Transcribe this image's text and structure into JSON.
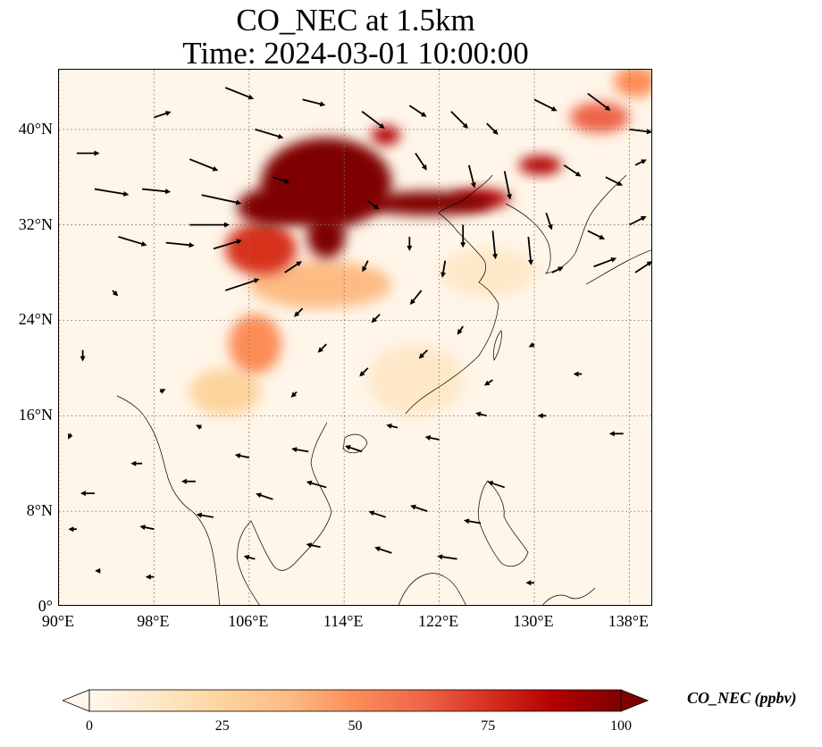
{
  "title": {
    "line1": "CO_NEC at 1.5km",
    "line2": "Time: 2024-03-01 10:00:00"
  },
  "map": {
    "region": {
      "lon_min": 90,
      "lon_max": 140,
      "lat_min": 0,
      "lat_max": 45
    },
    "gridlines": "dotted grey",
    "lat_ticks": [
      {
        "value": 0,
        "label": "0°"
      },
      {
        "value": 8,
        "label": "8°N"
      },
      {
        "value": 16,
        "label": "16°N"
      },
      {
        "value": 24,
        "label": "24°N"
      },
      {
        "value": 32,
        "label": "32°N"
      },
      {
        "value": 40,
        "label": "40°N"
      }
    ],
    "lon_ticks": [
      {
        "value": 90,
        "label": "90°E"
      },
      {
        "value": 98,
        "label": "98°E"
      },
      {
        "value": 106,
        "label": "106°E"
      },
      {
        "value": 114,
        "label": "114°E"
      },
      {
        "value": 122,
        "label": "122°E"
      },
      {
        "value": 130,
        "label": "130°E"
      },
      {
        "value": 138,
        "label": "138°E"
      }
    ],
    "plumes": [
      {
        "lon": 112.5,
        "lat": 35.5,
        "r_lon": 5.5,
        "r_lat": 3.8,
        "value": 100
      },
      {
        "lon": 108.0,
        "lat": 33.5,
        "r_lon": 3.0,
        "r_lat": 1.6,
        "value": 100
      },
      {
        "lon": 112.5,
        "lat": 31.0,
        "r_lon": 1.6,
        "r_lat": 1.8,
        "value": 100
      },
      {
        "lon": 121.0,
        "lat": 33.8,
        "r_lon": 5.5,
        "r_lat": 1.0,
        "value": 98
      },
      {
        "lon": 125.5,
        "lat": 34.2,
        "r_lon": 2.5,
        "r_lat": 0.8,
        "value": 90
      },
      {
        "lon": 107.0,
        "lat": 30.0,
        "r_lon": 3.0,
        "r_lat": 2.2,
        "value": 72
      },
      {
        "lon": 112.0,
        "lat": 27.0,
        "r_lon": 6.0,
        "r_lat": 2.0,
        "value": 40
      },
      {
        "lon": 106.5,
        "lat": 22.0,
        "r_lon": 2.2,
        "r_lat": 2.5,
        "value": 55
      },
      {
        "lon": 104.0,
        "lat": 18.0,
        "r_lon": 3.0,
        "r_lat": 2.0,
        "value": 30
      },
      {
        "lon": 130.5,
        "lat": 37.0,
        "r_lon": 1.8,
        "r_lat": 0.8,
        "value": 82
      },
      {
        "lon": 135.5,
        "lat": 41.0,
        "r_lon": 2.5,
        "r_lat": 1.3,
        "value": 60
      },
      {
        "lon": 138.5,
        "lat": 44.0,
        "r_lon": 1.8,
        "r_lat": 1.3,
        "value": 55
      },
      {
        "lon": 117.5,
        "lat": 39.5,
        "r_lon": 1.2,
        "r_lat": 0.8,
        "value": 90
      },
      {
        "lon": 126.0,
        "lat": 28.0,
        "r_lon": 4.0,
        "r_lat": 2.0,
        "value": 18
      },
      {
        "lon": 120.0,
        "lat": 19.0,
        "r_lon": 4.0,
        "r_lat": 3.0,
        "value": 10
      }
    ],
    "wind_vectors": [
      {
        "lon": 91.5,
        "lat": 38.0,
        "u": 8,
        "v": 0
      },
      {
        "lon": 93.0,
        "lat": 35.0,
        "u": 12,
        "v": -2
      },
      {
        "lon": 97.0,
        "lat": 35.0,
        "u": 10,
        "v": -1
      },
      {
        "lon": 101.0,
        "lat": 37.5,
        "u": 10,
        "v": -4
      },
      {
        "lon": 102.0,
        "lat": 34.5,
        "u": 14,
        "v": -3
      },
      {
        "lon": 101.0,
        "lat": 32.0,
        "u": 14,
        "v": 0
      },
      {
        "lon": 95.0,
        "lat": 31.0,
        "u": 10,
        "v": -3
      },
      {
        "lon": 99.0,
        "lat": 30.5,
        "u": 10,
        "v": -1
      },
      {
        "lon": 103.0,
        "lat": 30.0,
        "u": 10,
        "v": 3
      },
      {
        "lon": 104.0,
        "lat": 26.5,
        "u": 12,
        "v": 4
      },
      {
        "lon": 109.0,
        "lat": 28.0,
        "u": 6,
        "v": 4
      },
      {
        "lon": 98.0,
        "lat": 41.0,
        "u": 6,
        "v": 2
      },
      {
        "lon": 104.0,
        "lat": 43.5,
        "u": 10,
        "v": -4
      },
      {
        "lon": 106.5,
        "lat": 40.0,
        "u": 10,
        "v": -3
      },
      {
        "lon": 110.5,
        "lat": 42.5,
        "u": 8,
        "v": -2
      },
      {
        "lon": 115.5,
        "lat": 41.5,
        "u": 8,
        "v": -6
      },
      {
        "lon": 119.5,
        "lat": 42.0,
        "u": 6,
        "v": -4
      },
      {
        "lon": 123.0,
        "lat": 41.5,
        "u": 6,
        "v": -6
      },
      {
        "lon": 126.0,
        "lat": 40.5,
        "u": 4,
        "v": -4
      },
      {
        "lon": 130.0,
        "lat": 42.5,
        "u": 8,
        "v": -4
      },
      {
        "lon": 134.5,
        "lat": 43.0,
        "u": 8,
        "v": -6
      },
      {
        "lon": 138.0,
        "lat": 40.0,
        "u": 8,
        "v": -1
      },
      {
        "lon": 120.0,
        "lat": 38.0,
        "u": 4,
        "v": -6
      },
      {
        "lon": 124.5,
        "lat": 37.0,
        "u": 2,
        "v": -8
      },
      {
        "lon": 127.5,
        "lat": 36.5,
        "u": 2,
        "v": -10
      },
      {
        "lon": 132.5,
        "lat": 37.0,
        "u": 6,
        "v": -4
      },
      {
        "lon": 136.0,
        "lat": 36.0,
        "u": 6,
        "v": -3
      },
      {
        "lon": 138.5,
        "lat": 37.0,
        "u": 4,
        "v": 2
      },
      {
        "lon": 124.0,
        "lat": 32.0,
        "u": 0,
        "v": -8
      },
      {
        "lon": 126.5,
        "lat": 31.5,
        "u": 1,
        "v": -10
      },
      {
        "lon": 129.5,
        "lat": 31.0,
        "u": 1,
        "v": -10
      },
      {
        "lon": 131.0,
        "lat": 33.0,
        "u": 2,
        "v": -6
      },
      {
        "lon": 134.5,
        "lat": 31.5,
        "u": 6,
        "v": -3
      },
      {
        "lon": 138.0,
        "lat": 32.0,
        "u": 6,
        "v": 3
      },
      {
        "lon": 135.0,
        "lat": 28.5,
        "u": 8,
        "v": 3
      },
      {
        "lon": 138.5,
        "lat": 28.0,
        "u": 6,
        "v": 4
      },
      {
        "lon": 131.5,
        "lat": 28.0,
        "u": 4,
        "v": 2
      },
      {
        "lon": 122.5,
        "lat": 29.0,
        "u": -1,
        "v": -6
      },
      {
        "lon": 120.5,
        "lat": 26.5,
        "u": -4,
        "v": -5
      },
      {
        "lon": 119.5,
        "lat": 31.0,
        "u": 0,
        "v": -5
      },
      {
        "lon": 116.0,
        "lat": 29.0,
        "u": -2,
        "v": -4
      },
      {
        "lon": 110.5,
        "lat": 25.0,
        "u": -3,
        "v": -3
      },
      {
        "lon": 117.0,
        "lat": 24.5,
        "u": -3,
        "v": -3
      },
      {
        "lon": 112.5,
        "lat": 22.0,
        "u": -3,
        "v": -3
      },
      {
        "lon": 116.0,
        "lat": 20.0,
        "u": -3,
        "v": -3
      },
      {
        "lon": 124.0,
        "lat": 23.5,
        "u": -2,
        "v": -3
      },
      {
        "lon": 121.0,
        "lat": 21.5,
        "u": -3,
        "v": -3
      },
      {
        "lon": 130.0,
        "lat": 22.0,
        "u": -2,
        "v": -1
      },
      {
        "lon": 126.5,
        "lat": 19.0,
        "u": -3,
        "v": -2
      },
      {
        "lon": 134.0,
        "lat": 19.5,
        "u": -3,
        "v": 0
      },
      {
        "lon": 137.5,
        "lat": 14.5,
        "u": -5,
        "v": 0
      },
      {
        "lon": 131.0,
        "lat": 16.0,
        "u": -3,
        "v": 0
      },
      {
        "lon": 126.0,
        "lat": 16.0,
        "u": -4,
        "v": 1
      },
      {
        "lon": 122.0,
        "lat": 14.0,
        "u": -5,
        "v": 1
      },
      {
        "lon": 118.5,
        "lat": 15.0,
        "u": -4,
        "v": 1
      },
      {
        "lon": 115.5,
        "lat": 13.0,
        "u": -6,
        "v": 2
      },
      {
        "lon": 111.0,
        "lat": 13.0,
        "u": -6,
        "v": 1
      },
      {
        "lon": 106.0,
        "lat": 12.5,
        "u": -5,
        "v": 1
      },
      {
        "lon": 101.5,
        "lat": 10.5,
        "u": -5,
        "v": 0
      },
      {
        "lon": 97.0,
        "lat": 12.0,
        "u": -4,
        "v": 0
      },
      {
        "lon": 93.0,
        "lat": 9.5,
        "u": -5,
        "v": 0
      },
      {
        "lon": 91.5,
        "lat": 6.5,
        "u": -3,
        "v": 0
      },
      {
        "lon": 98.0,
        "lat": 6.5,
        "u": -5,
        "v": 1
      },
      {
        "lon": 103.0,
        "lat": 7.5,
        "u": -6,
        "v": 1
      },
      {
        "lon": 108.0,
        "lat": 9.0,
        "u": -6,
        "v": 2
      },
      {
        "lon": 112.5,
        "lat": 10.0,
        "u": -7,
        "v": 2
      },
      {
        "lon": 117.5,
        "lat": 7.5,
        "u": -6,
        "v": 2
      },
      {
        "lon": 121.0,
        "lat": 8.0,
        "u": -6,
        "v": 2
      },
      {
        "lon": 125.5,
        "lat": 7.0,
        "u": -6,
        "v": 1
      },
      {
        "lon": 127.5,
        "lat": 10.0,
        "u": -6,
        "v": 2
      },
      {
        "lon": 123.5,
        "lat": 4.0,
        "u": -7,
        "v": 1
      },
      {
        "lon": 118.0,
        "lat": 4.5,
        "u": -6,
        "v": 2
      },
      {
        "lon": 112.0,
        "lat": 5.0,
        "u": -5,
        "v": 1
      },
      {
        "lon": 106.5,
        "lat": 4.0,
        "u": -4,
        "v": 1
      },
      {
        "lon": 98.0,
        "lat": 2.5,
        "u": -3,
        "v": 0
      },
      {
        "lon": 93.5,
        "lat": 3.0,
        "u": -2,
        "v": 0
      },
      {
        "lon": 130.0,
        "lat": 2.0,
        "u": -3,
        "v": 0
      },
      {
        "lon": 91.0,
        "lat": 14.5,
        "u": -1,
        "v": -2
      },
      {
        "lon": 92.0,
        "lat": 21.5,
        "u": 0,
        "v": -4
      },
      {
        "lon": 94.5,
        "lat": 26.5,
        "u": 2,
        "v": -2
      },
      {
        "lon": 98.5,
        "lat": 18.0,
        "u": 2,
        "v": 1
      },
      {
        "lon": 102.0,
        "lat": 15.0,
        "u": -2,
        "v": 1
      },
      {
        "lon": 110.0,
        "lat": 18.0,
        "u": -2,
        "v": -2
      },
      {
        "lon": 116.0,
        "lat": 34.0,
        "u": 4,
        "v": -3
      },
      {
        "lon": 108.0,
        "lat": 36.0,
        "u": 6,
        "v": -2
      }
    ]
  },
  "colorbar": {
    "label": "CO_NEC (ppbv)",
    "min": 0,
    "max": 100,
    "extend": "both",
    "ticks": [
      "0",
      "25",
      "50",
      "75",
      "100"
    ],
    "colors": [
      "#fff7ec",
      "#fee8c8",
      "#fdd49e",
      "#fdbb84",
      "#fc8d59",
      "#ef6548",
      "#d7301f",
      "#b30000",
      "#7f0000"
    ]
  }
}
